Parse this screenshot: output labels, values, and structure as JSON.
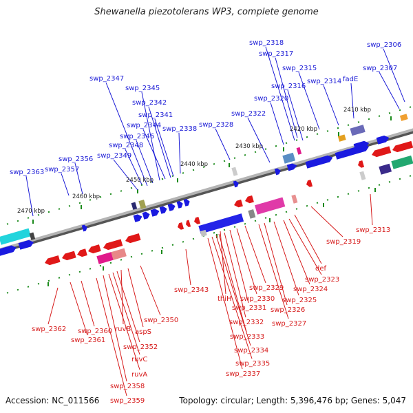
{
  "title": "Shewanella piezotolerans WP3, complete genome",
  "footer": {
    "accession": "Accession: NC_011566",
    "summary": "Topology: circular; Length: 5,396,476 bp; Genes: 5,047"
  },
  "colors": {
    "forward_label": "#1a1ad6",
    "reverse_label": "#d61a1a",
    "backbone": "#8c8c8c",
    "tick": "#1a8a1a"
  },
  "scale_labels": [
    "2410 kbp",
    "2420 kbp",
    "2430 kbp",
    "2440 kbp",
    "2450 kbp",
    "2460 kbp",
    "2470 kbp"
  ],
  "forward_genes": [
    {
      "label": "swp_2306"
    },
    {
      "label": "swp_2307"
    },
    {
      "label": "fadE"
    },
    {
      "label": "swp_2314"
    },
    {
      "label": "swp_2315"
    },
    {
      "label": "swp_2316"
    },
    {
      "label": "swp_2317"
    },
    {
      "label": "swp_2318"
    },
    {
      "label": "swp_2320"
    },
    {
      "label": "swp_2322"
    },
    {
      "label": "swp_2328"
    },
    {
      "label": "swp_2338"
    },
    {
      "label": "swp_2341"
    },
    {
      "label": "swp_2342"
    },
    {
      "label": "swp_2344"
    },
    {
      "label": "swp_2345"
    },
    {
      "label": "swp_2346"
    },
    {
      "label": "swp_2347"
    },
    {
      "label": "swp_2348"
    },
    {
      "label": "swp_2349"
    },
    {
      "label": "swp_2356"
    },
    {
      "label": "swp_2357"
    },
    {
      "label": "swp_2363"
    }
  ],
  "reverse_genes": [
    {
      "label": "swp_2313"
    },
    {
      "label": "swp_2319"
    },
    {
      "label": "def"
    },
    {
      "label": "swp_2323"
    },
    {
      "label": "swp_2324"
    },
    {
      "label": "swp_2325"
    },
    {
      "label": "swp_2326"
    },
    {
      "label": "swp_2327"
    },
    {
      "label": "swp_2329"
    },
    {
      "label": "swp_2330"
    },
    {
      "label": "swp_2331"
    },
    {
      "label": "thiH"
    },
    {
      "label": "swp_2332"
    },
    {
      "label": "swp_2333"
    },
    {
      "label": "swp_2334"
    },
    {
      "label": "swp_2335"
    },
    {
      "label": "swp_2337"
    },
    {
      "label": "swp_2343"
    },
    {
      "label": "swp_2350"
    },
    {
      "label": "aspS"
    },
    {
      "label": "ruvB"
    },
    {
      "label": "swp_2352"
    },
    {
      "label": "ruvC"
    },
    {
      "label": "ruvA"
    },
    {
      "label": "swp_2358"
    },
    {
      "label": "swp_2359"
    },
    {
      "label": "swp_2360"
    },
    {
      "label": "swp_2361"
    },
    {
      "label": "swp_2362"
    }
  ]
}
